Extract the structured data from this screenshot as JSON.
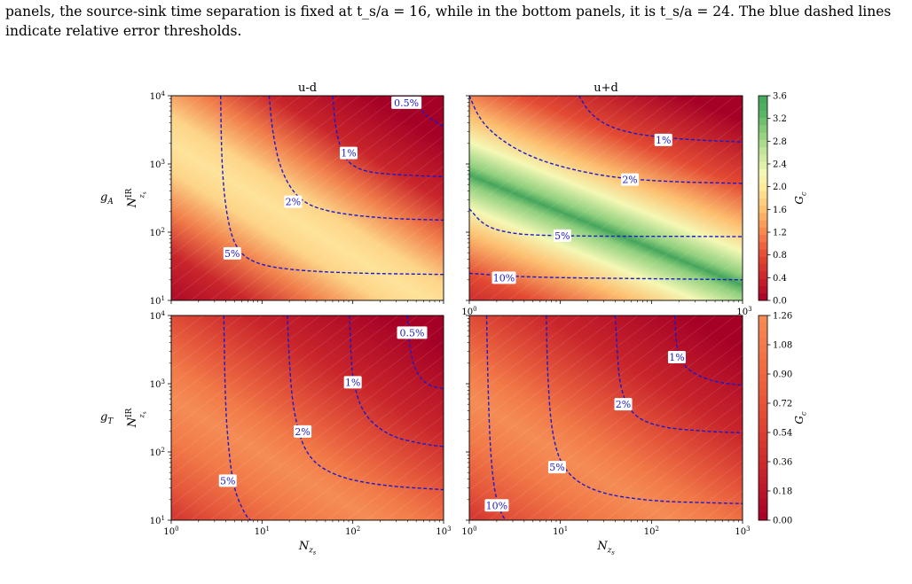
{
  "caption": {
    "line1": "panels, the source-sink time separation is fixed at t_s/a = 16, while in the bottom panels, it is t_s/a = 24. The blue dashed lines",
    "line2": "indicate relative error thresholds."
  },
  "chart_data": [
    {
      "type": "heatmap",
      "panel": "top-left",
      "title": "u-d",
      "row_label": "g_A",
      "ylabel": "N_{z_s}^{IR}",
      "xlabel": "",
      "xscale": "log",
      "yscale": "log",
      "xlim": [
        1,
        1000
      ],
      "ylim": [
        10,
        10000
      ],
      "x_ticks": [
        "",
        "",
        "",
        ""
      ],
      "y_ticks": [
        "10^1",
        "10^2",
        "10^3",
        "10^4"
      ],
      "colormap": "RdYlGn",
      "colorbar_range": [
        0.0,
        3.6
      ],
      "contours": [
        {
          "label": "5%",
          "x": [
            3.5,
            3.6,
            4.0,
            5.0,
            8,
            20,
            100,
            1000
          ],
          "y": [
            10000,
            1000,
            200,
            60,
            35,
            28,
            25,
            24
          ],
          "label_at": [
            4.7,
            49
          ]
        },
        {
          "label": "2%",
          "x": [
            12,
            13,
            16,
            25,
            50,
            200,
            1000
          ],
          "y": [
            10000,
            3000,
            800,
            300,
            200,
            160,
            150
          ],
          "label_at": [
            22,
            280
          ]
        },
        {
          "label": "1%",
          "x": [
            60,
            65,
            80,
            120,
            250,
            1000
          ],
          "y": [
            10000,
            3000,
            1200,
            800,
            700,
            650
          ],
          "label_at": [
            90,
            1450
          ]
        },
        {
          "label": "0.5%",
          "x": [
            450,
            600,
            800,
            1000
          ],
          "y": [
            10000,
            5500,
            4200,
            3500
          ],
          "label_at": [
            390,
            7900
          ]
        }
      ]
    },
    {
      "type": "heatmap",
      "panel": "top-right",
      "title": "u+d",
      "xlabel": "",
      "ylabel": "",
      "xscale": "log",
      "yscale": "log",
      "xlim": [
        1,
        1000
      ],
      "ylim": [
        10,
        10000
      ],
      "x_ticks": [
        "10^0",
        "",
        "",
        "10^3"
      ],
      "y_ticks": [],
      "colormap": "RdYlGn",
      "colorbar_range": [
        0.0,
        3.6
      ],
      "contours": [
        {
          "label": "1%",
          "x": [
            16,
            20,
            30,
            60,
            150,
            400,
            1000
          ],
          "y": [
            10000,
            6000,
            3800,
            2800,
            2400,
            2200,
            2100
          ],
          "label_at": [
            135,
            2250
          ]
        },
        {
          "label": "2%",
          "x": [
            1,
            1.3,
            2,
            4,
            10,
            40,
            200,
            1000
          ],
          "y": [
            10000,
            4500,
            2500,
            1400,
            900,
            620,
            540,
            520
          ],
          "label_at": [
            58,
            590
          ]
        },
        {
          "label": "5%",
          "x": [
            1,
            1.5,
            3,
            6,
            15,
            60,
            300,
            1000
          ],
          "y": [
            220,
            120,
            95,
            90,
            88,
            87,
            87,
            86
          ],
          "label_at": [
            10.5,
            89
          ]
        },
        {
          "label": "10%",
          "x": [
            1,
            3,
            10,
            50,
            300,
            1000
          ],
          "y": [
            25,
            22.5,
            21.5,
            21,
            20.5,
            20
          ],
          "label_at": [
            2.4,
            21.5
          ]
        }
      ]
    },
    {
      "type": "heatmap",
      "panel": "bottom-left",
      "title": "",
      "row_label": "g_T",
      "ylabel": "N_{z_s}^{IR}",
      "xlabel": "N_{z_s}",
      "xscale": "log",
      "yscale": "log",
      "xlim": [
        1,
        1000
      ],
      "ylim": [
        10,
        10000
      ],
      "x_ticks": [
        "10^0",
        "10^1",
        "10^2",
        "10^3"
      ],
      "y_ticks": [
        "10^1",
        "10^2",
        "10^3",
        "10^4"
      ],
      "colormap": "RdYlGn",
      "colorbar_range": [
        0.0,
        1.26
      ],
      "contours": [
        {
          "label": "5%",
          "x": [
            3.8,
            3.9,
            4.1,
            4.8,
            6.5,
            7.5
          ],
          "y": [
            10000,
            1000,
            200,
            30,
            12,
            10
          ],
          "label_at": [
            4.2,
            38
          ]
        },
        {
          "label": "2%",
          "x": [
            19,
            20,
            22,
            30,
            60,
            200,
            1000
          ],
          "y": [
            10000,
            2000,
            400,
            90,
            45,
            32,
            28
          ],
          "label_at": [
            28,
            200
          ]
        },
        {
          "label": "1%",
          "x": [
            92,
            95,
            100,
            130,
            250,
            600,
            1000
          ],
          "y": [
            10000,
            3000,
            1100,
            350,
            170,
            130,
            120
          ],
          "label_at": [
            100,
            1050
          ]
        },
        {
          "label": "0.5%",
          "x": [
            400,
            420,
            480,
            650,
            1000
          ],
          "y": [
            10000,
            3500,
            1600,
            950,
            850
          ],
          "label_at": [
            450,
            5600
          ]
        }
      ]
    },
    {
      "type": "heatmap",
      "panel": "bottom-right",
      "title": "",
      "xlabel": "N_{z_s}",
      "ylabel": "",
      "xscale": "log",
      "yscale": "log",
      "xlim": [
        1,
        1000
      ],
      "ylim": [
        10,
        10000
      ],
      "x_ticks": [
        "10^0",
        "10^1",
        "10^2",
        "10^3"
      ],
      "y_ticks": [],
      "colormap": "RdYlGn",
      "colorbar_range": [
        0.0,
        1.26
      ],
      "contours": [
        {
          "label": "10%",
          "x": [
            1.55,
            1.6,
            1.7,
            1.9,
            2.2,
            2.5
          ],
          "y": [
            10000,
            1000,
            100,
            25,
            13,
            10
          ],
          "label_at": [
            2.0,
            16.5
          ]
        },
        {
          "label": "5%",
          "x": [
            7,
            7.2,
            8,
            11,
            25,
            100,
            400,
            1000
          ],
          "y": [
            10000,
            1500,
            180,
            50,
            25,
            19,
            18,
            17.5
          ],
          "label_at": [
            9.2,
            60
          ]
        },
        {
          "label": "2%",
          "x": [
            40,
            42,
            45,
            60,
            120,
            400,
            1000
          ],
          "y": [
            10000,
            3000,
            900,
            350,
            230,
            200,
            190
          ],
          "label_at": [
            49,
            500
          ]
        },
        {
          "label": "1%",
          "x": [
            180,
            185,
            195,
            260,
            500,
            1000
          ],
          "y": [
            10000,
            5000,
            2500,
            1500,
            1050,
            950
          ],
          "label_at": [
            190,
            2450
          ]
        }
      ]
    }
  ],
  "colorbars": [
    {
      "label": "G_c",
      "ticks": [
        "0.0",
        "0.4",
        "0.8",
        "1.2",
        "1.6",
        "2.0",
        "2.4",
        "2.8",
        "3.2",
        "3.6"
      ]
    },
    {
      "label": "G_c",
      "ticks": [
        "0.00",
        "0.18",
        "0.36",
        "0.54",
        "0.72",
        "0.90",
        "1.08",
        "1.26"
      ]
    }
  ],
  "colors": {
    "contour": "#1a1acd",
    "label_text": "#2020cc",
    "label_box": "#ffffff"
  }
}
